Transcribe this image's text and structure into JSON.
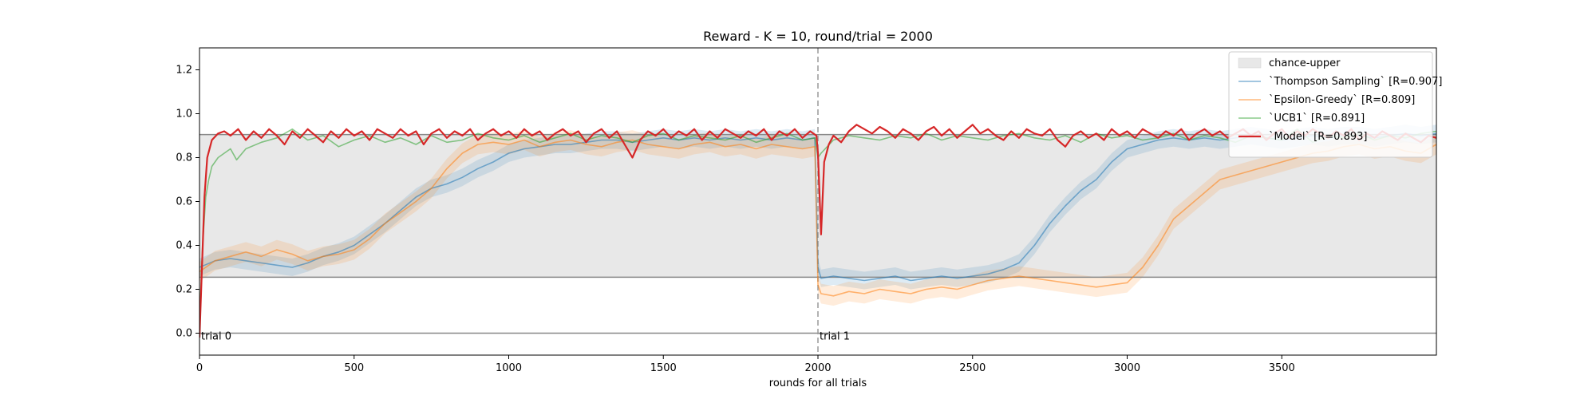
{
  "chart_data": {
    "type": "line",
    "title": "Reward - K = 10, round/trial = 2000",
    "xlabel": "rounds for all trials",
    "ylabel": "",
    "xlim": [
      0,
      4000
    ],
    "ylim": [
      -0.1,
      1.3
    ],
    "x_ticks": [
      0,
      500,
      1000,
      1500,
      2000,
      2500,
      3000,
      3500
    ],
    "y_ticks": [
      0.0,
      0.2,
      0.4,
      0.6,
      0.8,
      1.0,
      1.2
    ],
    "grid": false,
    "legend_position": "top-right",
    "hlines": [
      0.0,
      0.255,
      0.905
    ],
    "trial_boundary_x": 2000,
    "annotations": [
      {
        "text": "trial 0",
        "x": 0,
        "y": 0.0
      },
      {
        "text": "trial 1",
        "x": 2000,
        "y": 0.0
      }
    ],
    "chance_band": {
      "name": "chance-upper",
      "lower": 0.255,
      "upper": 0.905,
      "color": "#e8e8e8"
    },
    "series": [
      {
        "name": "`Thompson Sampling` [R=0.907]",
        "color": "#1f77b4",
        "band": 0.04,
        "x": [
          0,
          50,
          100,
          150,
          200,
          250,
          300,
          350,
          400,
          450,
          500,
          550,
          600,
          650,
          700,
          750,
          800,
          850,
          900,
          950,
          1000,
          1050,
          1100,
          1150,
          1200,
          1250,
          1300,
          1350,
          1400,
          1450,
          1500,
          1550,
          1600,
          1650,
          1700,
          1750,
          1800,
          1850,
          1900,
          1950,
          1990,
          2000,
          2010,
          2050,
          2100,
          2150,
          2200,
          2250,
          2300,
          2350,
          2400,
          2450,
          2500,
          2550,
          2600,
          2650,
          2700,
          2750,
          2800,
          2850,
          2900,
          2950,
          3000,
          3050,
          3100,
          3150,
          3200,
          3250,
          3300,
          3350,
          3400,
          3450,
          3500,
          3550,
          3600,
          3650,
          3700,
          3750,
          3800,
          3850,
          3900,
          3950,
          4000
        ],
        "y": [
          0.3,
          0.33,
          0.34,
          0.33,
          0.32,
          0.31,
          0.3,
          0.32,
          0.35,
          0.37,
          0.4,
          0.45,
          0.5,
          0.56,
          0.62,
          0.66,
          0.68,
          0.71,
          0.75,
          0.78,
          0.82,
          0.84,
          0.85,
          0.86,
          0.86,
          0.87,
          0.88,
          0.88,
          0.87,
          0.88,
          0.89,
          0.88,
          0.89,
          0.88,
          0.89,
          0.88,
          0.89,
          0.88,
          0.89,
          0.88,
          0.89,
          0.3,
          0.25,
          0.26,
          0.25,
          0.24,
          0.25,
          0.26,
          0.24,
          0.25,
          0.26,
          0.25,
          0.26,
          0.27,
          0.29,
          0.32,
          0.4,
          0.5,
          0.58,
          0.65,
          0.7,
          0.78,
          0.84,
          0.86,
          0.88,
          0.89,
          0.88,
          0.89,
          0.88,
          0.89,
          0.9,
          0.89,
          0.88,
          0.89,
          0.9,
          0.89,
          0.9,
          0.9,
          0.89,
          0.9,
          0.91,
          0.9,
          0.91
        ]
      },
      {
        "name": "`Epsilon-Greedy` [R=0.809]",
        "color": "#ff7f0e",
        "band": 0.045,
        "x": [
          0,
          50,
          100,
          150,
          200,
          250,
          300,
          350,
          400,
          450,
          500,
          550,
          600,
          650,
          700,
          750,
          800,
          850,
          900,
          950,
          1000,
          1050,
          1100,
          1150,
          1200,
          1250,
          1300,
          1350,
          1400,
          1450,
          1500,
          1550,
          1600,
          1650,
          1700,
          1750,
          1800,
          1850,
          1900,
          1950,
          1990,
          2000,
          2010,
          2050,
          2100,
          2150,
          2200,
          2250,
          2300,
          2350,
          2400,
          2450,
          2500,
          2550,
          2600,
          2650,
          2700,
          2750,
          2800,
          2850,
          2900,
          2950,
          3000,
          3050,
          3100,
          3150,
          3200,
          3250,
          3300,
          3350,
          3400,
          3450,
          3500,
          3550,
          3600,
          3650,
          3700,
          3750,
          3800,
          3850,
          3900,
          3950,
          4000
        ],
        "y": [
          0.28,
          0.33,
          0.35,
          0.37,
          0.35,
          0.38,
          0.36,
          0.33,
          0.35,
          0.36,
          0.38,
          0.43,
          0.5,
          0.55,
          0.6,
          0.66,
          0.75,
          0.82,
          0.86,
          0.87,
          0.86,
          0.88,
          0.85,
          0.87,
          0.88,
          0.86,
          0.85,
          0.87,
          0.88,
          0.86,
          0.85,
          0.84,
          0.86,
          0.87,
          0.85,
          0.86,
          0.84,
          0.86,
          0.85,
          0.84,
          0.85,
          0.22,
          0.18,
          0.17,
          0.19,
          0.18,
          0.2,
          0.19,
          0.18,
          0.2,
          0.21,
          0.2,
          0.22,
          0.24,
          0.25,
          0.26,
          0.25,
          0.24,
          0.23,
          0.22,
          0.21,
          0.22,
          0.23,
          0.3,
          0.4,
          0.52,
          0.58,
          0.64,
          0.7,
          0.72,
          0.74,
          0.76,
          0.78,
          0.8,
          0.82,
          0.83,
          0.85,
          0.86,
          0.84,
          0.85,
          0.83,
          0.82,
          0.86
        ]
      },
      {
        "name": "`UCB1` [R=0.891]",
        "color": "#2ca02c",
        "band": 0.0,
        "x": [
          0,
          10,
          20,
          30,
          40,
          60,
          80,
          100,
          120,
          150,
          200,
          250,
          300,
          350,
          400,
          450,
          500,
          550,
          600,
          650,
          700,
          750,
          800,
          850,
          900,
          950,
          1000,
          1050,
          1100,
          1150,
          1200,
          1250,
          1300,
          1350,
          1400,
          1450,
          1500,
          1550,
          1600,
          1650,
          1700,
          1750,
          1800,
          1850,
          1900,
          1950,
          1990,
          2000,
          2010,
          2030,
          2050,
          2100,
          2150,
          2200,
          2250,
          2300,
          2350,
          2400,
          2450,
          2500,
          2550,
          2600,
          2650,
          2700,
          2750,
          2800,
          2850,
          2900,
          2950,
          3000,
          3050,
          3100,
          3150,
          3200,
          3250,
          3300,
          3350,
          3400,
          3450,
          3500,
          3550,
          3600,
          3650,
          3700,
          3750,
          3800,
          3850,
          3900,
          3950,
          4000
        ],
        "y": [
          0.05,
          0.4,
          0.62,
          0.7,
          0.76,
          0.8,
          0.82,
          0.84,
          0.79,
          0.84,
          0.87,
          0.89,
          0.93,
          0.88,
          0.9,
          0.85,
          0.88,
          0.9,
          0.87,
          0.89,
          0.86,
          0.9,
          0.87,
          0.88,
          0.91,
          0.89,
          0.88,
          0.9,
          0.87,
          0.89,
          0.91,
          0.88,
          0.9,
          0.89,
          0.87,
          0.9,
          0.91,
          0.88,
          0.9,
          0.89,
          0.88,
          0.9,
          0.87,
          0.89,
          0.91,
          0.88,
          0.89,
          0.8,
          0.82,
          0.85,
          0.88,
          0.9,
          0.89,
          0.88,
          0.9,
          0.89,
          0.91,
          0.88,
          0.9,
          0.89,
          0.88,
          0.9,
          0.91,
          0.89,
          0.88,
          0.9,
          0.87,
          0.91,
          0.89,
          0.9,
          0.88,
          0.89,
          0.91,
          0.88,
          0.9,
          0.89,
          0.87,
          0.9,
          0.89,
          0.88,
          0.93,
          0.87,
          0.9,
          0.89,
          0.91,
          0.88,
          0.9,
          0.89,
          0.91,
          0.92
        ]
      },
      {
        "name": "`Model` [R=0.893]",
        "color": "#d62728",
        "band": 0.0,
        "x": [
          0,
          8,
          16,
          25,
          40,
          60,
          80,
          100,
          125,
          150,
          175,
          200,
          225,
          250,
          275,
          300,
          325,
          350,
          375,
          400,
          425,
          450,
          475,
          500,
          525,
          550,
          575,
          600,
          625,
          650,
          675,
          700,
          725,
          750,
          775,
          800,
          825,
          850,
          875,
          900,
          925,
          950,
          975,
          1000,
          1025,
          1050,
          1075,
          1100,
          1125,
          1150,
          1175,
          1200,
          1225,
          1250,
          1275,
          1300,
          1325,
          1350,
          1375,
          1400,
          1425,
          1450,
          1475,
          1500,
          1525,
          1550,
          1575,
          1600,
          1625,
          1650,
          1675,
          1700,
          1725,
          1750,
          1775,
          1800,
          1825,
          1850,
          1875,
          1900,
          1925,
          1950,
          1975,
          1995,
          2000,
          2010,
          2020,
          2035,
          2050,
          2075,
          2100,
          2125,
          2150,
          2175,
          2200,
          2225,
          2250,
          2275,
          2300,
          2325,
          2350,
          2375,
          2400,
          2425,
          2450,
          2475,
          2500,
          2525,
          2550,
          2575,
          2600,
          2625,
          2650,
          2675,
          2700,
          2725,
          2750,
          2775,
          2800,
          2825,
          2850,
          2875,
          2900,
          2925,
          2950,
          2975,
          3000,
          3025,
          3050,
          3075,
          3100,
          3125,
          3150,
          3175,
          3200,
          3225,
          3250,
          3275,
          3300,
          3325,
          3350,
          3375,
          3400,
          3425,
          3450,
          3475,
          3500,
          3525,
          3550,
          3575,
          3600,
          3625,
          3650,
          3675,
          3700,
          3725,
          3750,
          3775,
          3800,
          3825,
          3850,
          3875,
          3900,
          3925,
          3950,
          3975,
          4000
        ],
        "y": [
          -0.02,
          0.3,
          0.62,
          0.8,
          0.88,
          0.91,
          0.92,
          0.9,
          0.93,
          0.88,
          0.92,
          0.89,
          0.93,
          0.9,
          0.86,
          0.92,
          0.89,
          0.93,
          0.9,
          0.87,
          0.92,
          0.89,
          0.93,
          0.9,
          0.92,
          0.88,
          0.93,
          0.91,
          0.89,
          0.93,
          0.9,
          0.92,
          0.86,
          0.91,
          0.93,
          0.89,
          0.92,
          0.9,
          0.93,
          0.88,
          0.91,
          0.93,
          0.9,
          0.92,
          0.89,
          0.93,
          0.9,
          0.92,
          0.88,
          0.91,
          0.93,
          0.9,
          0.92,
          0.87,
          0.91,
          0.93,
          0.89,
          0.92,
          0.86,
          0.8,
          0.88,
          0.92,
          0.9,
          0.93,
          0.89,
          0.92,
          0.9,
          0.93,
          0.88,
          0.92,
          0.89,
          0.93,
          0.91,
          0.89,
          0.92,
          0.9,
          0.93,
          0.88,
          0.92,
          0.9,
          0.93,
          0.89,
          0.92,
          0.9,
          0.82,
          0.45,
          0.78,
          0.86,
          0.9,
          0.87,
          0.92,
          0.95,
          0.93,
          0.91,
          0.94,
          0.92,
          0.89,
          0.93,
          0.91,
          0.88,
          0.92,
          0.94,
          0.9,
          0.93,
          0.89,
          0.92,
          0.95,
          0.91,
          0.93,
          0.9,
          0.88,
          0.92,
          0.89,
          0.93,
          0.91,
          0.9,
          0.93,
          0.88,
          0.85,
          0.9,
          0.92,
          0.89,
          0.91,
          0.88,
          0.93,
          0.9,
          0.92,
          0.89,
          0.93,
          0.91,
          0.89,
          0.92,
          0.9,
          0.93,
          0.88,
          0.91,
          0.93,
          0.9,
          0.92,
          0.89,
          0.91,
          0.93,
          0.9,
          0.92,
          0.88,
          0.91,
          0.93,
          0.89,
          0.92,
          0.9,
          0.93,
          0.91,
          0.89,
          0.92,
          0.9,
          0.93,
          0.88,
          0.91,
          0.89,
          0.92,
          0.9,
          0.88,
          0.91,
          0.89,
          0.87,
          0.9,
          0.89
        ]
      }
    ]
  }
}
